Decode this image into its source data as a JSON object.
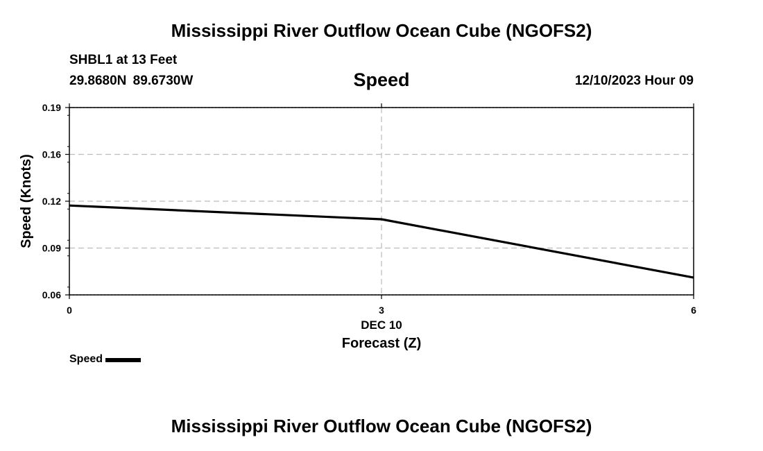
{
  "header": {
    "title": "Mississippi River Outflow Ocean Cube (NGOFS2)",
    "station": "SHBL1 at 13 Feet",
    "coordinates": "29.8680N 89.6730W",
    "datetime": "12/10/2023 Hour 09"
  },
  "footer": {
    "title": "Mississippi River Outflow Ocean Cube (NGOFS2)"
  },
  "chart_data": {
    "type": "line",
    "title": "Speed",
    "ylabel": "Speed (Knots)",
    "xlabel": "Forecast (Z)",
    "x_date_label": "DEC 10",
    "xlim": [
      0,
      6
    ],
    "ylim": [
      0.06,
      0.19
    ],
    "x_ticks": [
      0,
      3,
      6
    ],
    "x_tick_labels": [
      "0",
      "3",
      "6"
    ],
    "y_ticks": [
      0.06,
      0.09,
      0.12,
      0.16,
      0.19
    ],
    "y_tick_labels": [
      "0.06",
      "0.09",
      "0.12",
      "0.16",
      "0.19"
    ],
    "grid": true,
    "legend": "bottom-left",
    "series": [
      {
        "name": "Speed",
        "color": "#000000",
        "x": [
          0,
          3,
          6
        ],
        "y": [
          0.122,
          0.1125,
          0.072
        ]
      }
    ]
  }
}
